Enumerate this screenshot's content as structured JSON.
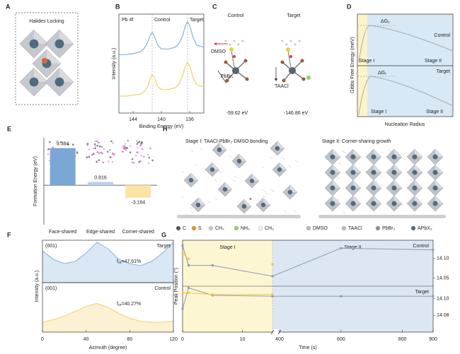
{
  "panels": {
    "A": {
      "label": "A",
      "title": "Halides Locking"
    },
    "C": {
      "label": "C",
      "control": "Control",
      "target": "Target",
      "dmso": "DMSO",
      "pbbr2": "PbBr₂",
      "taacl": "TAACl",
      "control_energy": "-59.62 eV",
      "target_energy": "-146.86 eV"
    },
    "D": {
      "label": "D",
      "y_label": "Gibbs Free Energy (meV)",
      "x_label": "Nucleation Radius",
      "control": "Control",
      "target": "Target",
      "stage_1": "Stage I",
      "stage_2": "Stage II",
      "dg_control": {
        "symbol": "ΔG",
        "subscript": "c"
      },
      "dg_target": {
        "symbol": "ΔG",
        "subscript": "r"
      }
    },
    "H": {
      "label": "H",
      "stage_1_title": "Stage I: TAACl-PbBr₂-DMSO bonding",
      "stage_2_title": "Stage II: Corner-sharing growth",
      "legend": [
        "C",
        "S",
        "CH₂",
        "NH₃",
        "CH₃",
        "DMSO",
        "TAACl",
        "PbBr₂",
        "APbX₃"
      ]
    }
  },
  "chart_data": [
    {
      "type": "line",
      "panel": "B",
      "annotation": "Pb 4f",
      "y_label": "Intensity (a.u.)",
      "x_label": "Binding Energy (eV)",
      "xlim": [
        146,
        134
      ],
      "xticks": [
        144,
        140,
        136
      ],
      "ylim": [
        0,
        1.05
      ],
      "x": [
        146,
        145,
        144,
        143,
        142.5,
        142,
        141.6,
        141.3,
        141,
        140.5,
        140,
        139,
        138,
        137.5,
        137,
        136.6,
        136.3,
        136,
        135.5,
        135,
        134
      ],
      "series": [
        {
          "color": "#86b0de",
          "values": [
            0.62,
            0.62,
            0.63,
            0.65,
            0.68,
            0.74,
            0.82,
            0.86,
            0.82,
            0.72,
            0.68,
            0.68,
            0.7,
            0.74,
            0.82,
            0.93,
            0.97,
            0.93,
            0.8,
            0.72,
            0.7
          ]
        },
        {
          "color": "#f5cf6a",
          "values": [
            0.18,
            0.18,
            0.19,
            0.2,
            0.22,
            0.27,
            0.36,
            0.41,
            0.38,
            0.28,
            0.25,
            0.25,
            0.27,
            0.31,
            0.4,
            0.5,
            0.54,
            0.5,
            0.38,
            0.3,
            0.28
          ]
        }
      ],
      "lines": [
        {
          "label": "Control",
          "value": 141.3
        },
        {
          "label": "Target",
          "value": 136.3
        }
      ]
    },
    {
      "type": "bar",
      "panel": "E",
      "y_label": "Formation Energy (eV)",
      "categories": [
        "Face-shared",
        "Edge-shared",
        "Corner-shared"
      ],
      "values": [
        9.384,
        0.816,
        -3.164
      ],
      "colors": [
        "#7ba7d7",
        "#b9cfee",
        "#fbe3a6"
      ],
      "ylim": [
        -10,
        12
      ]
    },
    {
      "type": "area",
      "panel": "F",
      "label": "(001)",
      "name": "Target",
      "annotation": {
        "symbol": "f",
        "subscript": "or",
        "text": "=47.61%"
      },
      "color": "#86b0de",
      "xlim": [
        0,
        120
      ],
      "ylim": [
        0,
        1
      ],
      "x": [
        0,
        10,
        20,
        30,
        40,
        50,
        60,
        70,
        80,
        90,
        100,
        110,
        120
      ],
      "values": [
        0.75,
        0.55,
        0.45,
        0.5,
        0.7,
        0.95,
        0.8,
        0.55,
        0.45,
        0.4,
        0.5,
        0.7,
        0.95
      ]
    },
    {
      "type": "area",
      "label": "(001)",
      "name": "Control",
      "annotation": {
        "symbol": "f",
        "subscript": "or",
        "text": "=40.27%"
      },
      "color": "#f5cf6a",
      "xlim": [
        0,
        120
      ],
      "ylim": [
        0,
        1
      ],
      "xticks": [
        0,
        40,
        80,
        120
      ],
      "x_label": "Azimuth (degree)",
      "y_label": "Intensity (a.u.)",
      "x": [
        0,
        10,
        20,
        30,
        40,
        50,
        60,
        70,
        80,
        90,
        100,
        110,
        120
      ],
      "values": [
        0.2,
        0.25,
        0.32,
        0.42,
        0.52,
        0.58,
        0.5,
        0.38,
        0.28,
        0.22,
        0.2,
        0.2,
        0.22
      ]
    },
    {
      "type": "line",
      "panel": "G",
      "y_label": "Peak Position (°)",
      "x_label": "Time (s)",
      "xlim": [
        0,
        900
      ],
      "xticks": [
        0,
        10,
        400,
        600,
        800,
        900
      ],
      "axis_break": [
        15,
        400
      ],
      "regions": [
        {
          "label": "Stage I",
          "from": 0,
          "to": 15
        },
        {
          "label": "Stage II",
          "from": 15,
          "to": 900
        }
      ],
      "x": [
        0,
        1,
        5,
        15,
        600,
        900
      ],
      "panes": [
        {
          "name": "Control",
          "y2lim": [
            14.03,
            14.145
          ],
          "y2ticks": [
            {
              "value": 14.1,
              "label": "14.10"
            },
            {
              "value": 14.05,
              "label": "14.05"
            }
          ],
          "series": [
            {
              "color": "#8a9bb0",
              "values": [
                14.132,
                14.082,
                14.082,
                14.055,
                14.125,
                14.121
              ]
            },
            {
              "color": "#f5c542",
              "values": [
                14.113,
                14.098,
                null,
                14.085,
                null,
                null
              ]
            }
          ]
        },
        {
          "name": "Target",
          "y2lim": [
            14.06,
            14.115
          ],
          "y2ticks": [
            {
              "value": 14.1,
              "label": "14.10"
            },
            {
              "value": 14.08,
              "label": "14.08"
            }
          ],
          "series": [
            {
              "color": "#8a9bb0",
              "values": [
                14.088,
                14.113,
                14.104,
                14.103,
                14.103,
                14.103
              ]
            },
            {
              "color": "#f5c542",
              "values": [
                14.107,
                14.107,
                14.105,
                14.105,
                null,
                null
              ]
            }
          ]
        }
      ]
    }
  ]
}
